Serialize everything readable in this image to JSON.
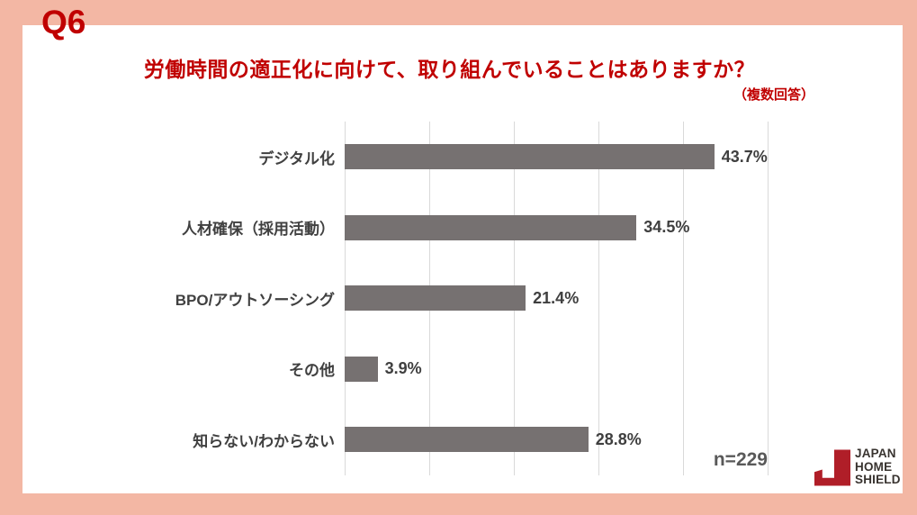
{
  "page": {
    "question_label": "Q6"
  },
  "header": {
    "title": "労働時間の適正化に向けて、取り組んでいることはありますか？",
    "subtitle": "（複数回答）"
  },
  "chart_data": {
    "type": "bar",
    "orientation": "horizontal",
    "title": "労働時間の適正化に向けて、取り組んでいることはありますか？（複数回答）",
    "categories": [
      "デジタル化",
      "人材確保（採用活動）",
      "BPO/アウトソーシング",
      "その他",
      "知らない/わからない"
    ],
    "values": [
      43.7,
      34.5,
      21.4,
      3.9,
      28.8
    ],
    "value_labels": [
      "43.7%",
      "34.5%",
      "21.4%",
      "3.9%",
      "28.8%"
    ],
    "xlabel": "",
    "ylabel": "",
    "xlim": [
      0,
      50
    ],
    "gridline_step": 10,
    "grid": true,
    "legend": false,
    "bar_color": "#767171",
    "gridline_color": "#d9d9d9"
  },
  "footer": {
    "sample_size": "n=229"
  },
  "logo": {
    "lines": [
      "JAPAN",
      "HOME",
      "SHIELD"
    ],
    "mark_color": "#b01e28",
    "text_color": "#38332f"
  },
  "colors": {
    "accent_red": "#c00000",
    "frame": "#f3b7a4"
  }
}
